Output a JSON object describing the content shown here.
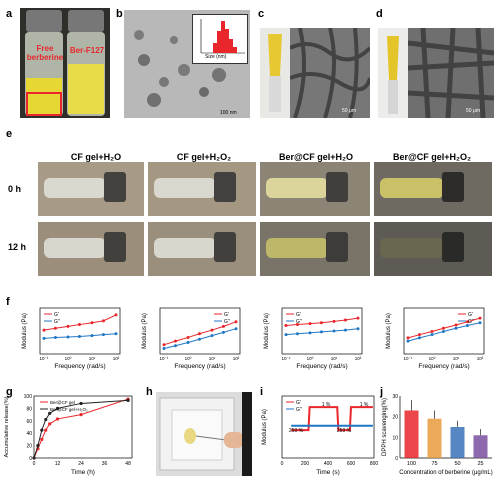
{
  "panel_labels": [
    "a",
    "b",
    "c",
    "d",
    "e",
    "f",
    "g",
    "h",
    "i",
    "j"
  ],
  "panel_a": {
    "vial_left_label_line1": "Free",
    "vial_left_label_line2": "berberine",
    "vial_right_label": "Ber-F127"
  },
  "panel_b": {
    "scale_bar": "100 nm",
    "inset_xlabel": "Size (nm)",
    "inset_ylabel": "Count (%)"
  },
  "panel_c": {
    "scale_bar": "50 μm"
  },
  "panel_d": {
    "scale_bar": "50 μm"
  },
  "panel_e": {
    "columns": [
      "CF gel+H₂O",
      "CF gel+H₂O₂",
      "Ber@CF gel+H₂O",
      "Ber@CF gel+H₂O₂"
    ],
    "rows": [
      "0 h",
      "12 h"
    ]
  },
  "panel_f": {
    "xlabel": "Frequency (rad/s)",
    "ylabel": "Modulus (Pa)",
    "legend": [
      "G'",
      "G''"
    ],
    "colors": {
      "gp": "#e8262b",
      "gpp": "#1f77c4"
    }
  },
  "panel_g": {
    "xlabel": "Time (h)",
    "ylabel": "Accumulative release(%)",
    "legend": [
      "Ber@CF gel",
      "Ber@CF gel+H₂O₂"
    ],
    "xticks": [
      "0",
      "12",
      "24",
      "36",
      "48"
    ],
    "yticks": [
      "0",
      "20",
      "40",
      "60",
      "80",
      "100"
    ]
  },
  "panel_i": {
    "xlabel": "Time (s)",
    "ylabel": "Modulus (Pa)",
    "legend": [
      "G'",
      "G''"
    ],
    "xticks": [
      "0",
      "200",
      "400",
      "600",
      "800"
    ],
    "annotations": [
      "250 %",
      "1 %",
      "250 %",
      "1 %"
    ]
  },
  "panel_j": {
    "xlabel": "Concentration of berberine (μg/mL)",
    "ylabel": "DPPH scavenging(%)",
    "yticks": [
      "0",
      "10",
      "20",
      "30"
    ]
  },
  "chart_data": [
    {
      "type": "line",
      "panel": "f1",
      "xlabel": "Frequency (rad/s)",
      "ylabel": "Modulus (Pa)",
      "x": [
        0.1,
        0.3,
        1,
        3,
        10,
        30,
        100
      ],
      "series": [
        {
          "name": "G'",
          "values": [
            0.52,
            0.56,
            0.6,
            0.64,
            0.68,
            0.72,
            0.85
          ]
        },
        {
          "name": "G''",
          "values": [
            0.34,
            0.36,
            0.37,
            0.38,
            0.4,
            0.42,
            0.44
          ]
        }
      ]
    },
    {
      "type": "line",
      "panel": "f2",
      "xlabel": "Frequency (rad/s)",
      "ylabel": "Modulus (Pa)",
      "x": [
        0.1,
        0.3,
        1,
        3,
        10,
        30,
        100
      ],
      "series": [
        {
          "name": "G'",
          "values": [
            0.2,
            0.28,
            0.36,
            0.44,
            0.52,
            0.6,
            0.7
          ]
        },
        {
          "name": "G''",
          "values": [
            0.12,
            0.18,
            0.25,
            0.32,
            0.4,
            0.47,
            0.55
          ]
        }
      ]
    },
    {
      "type": "line",
      "panel": "f3",
      "xlabel": "Frequency (rad/s)",
      "ylabel": "Modulus (Pa)",
      "x": [
        0.1,
        0.3,
        1,
        3,
        10,
        30,
        100
      ],
      "series": [
        {
          "name": "G'",
          "values": [
            0.62,
            0.64,
            0.66,
            0.68,
            0.71,
            0.74,
            0.78
          ]
        },
        {
          "name": "G''",
          "values": [
            0.42,
            0.44,
            0.46,
            0.48,
            0.5,
            0.52,
            0.55
          ]
        }
      ]
    },
    {
      "type": "line",
      "panel": "f4",
      "xlabel": "Frequency (rad/s)",
      "ylabel": "Modulus (Pa)",
      "x": [
        0.1,
        0.3,
        1,
        3,
        10,
        30,
        100
      ],
      "series": [
        {
          "name": "G'",
          "values": [
            0.35,
            0.42,
            0.49,
            0.56,
            0.63,
            0.7,
            0.78
          ]
        },
        {
          "name": "G''",
          "values": [
            0.28,
            0.35,
            0.42,
            0.49,
            0.56,
            0.62,
            0.68
          ]
        }
      ]
    },
    {
      "type": "line",
      "panel": "g",
      "xlabel": "Time (h)",
      "ylabel": "Accumulative release(%)",
      "xlim": [
        0,
        50
      ],
      "ylim": [
        0,
        100
      ],
      "series": [
        {
          "name": "Ber@CF gel",
          "x": [
            0,
            2,
            4,
            6,
            8,
            12,
            24,
            48
          ],
          "values": [
            0,
            15,
            30,
            45,
            55,
            63,
            70,
            95
          ]
        },
        {
          "name": "Ber@CF gel+H₂O₂",
          "x": [
            0,
            2,
            4,
            6,
            8,
            12,
            24,
            48
          ],
          "values": [
            0,
            20,
            45,
            62,
            72,
            80,
            88,
            93
          ]
        }
      ]
    },
    {
      "type": "line",
      "panel": "i",
      "xlabel": "Time (s)",
      "ylabel": "Modulus (Pa)",
      "xlim": [
        0,
        800
      ],
      "series": [
        {
          "name": "G'",
          "x": [
            80,
            230,
            240,
            480,
            490,
            590,
            600,
            790
          ],
          "values": [
            0.45,
            0.45,
            0.82,
            0.82,
            0.45,
            0.45,
            0.82,
            0.82
          ]
        },
        {
          "name": "G''",
          "x": [
            80,
            230,
            240,
            480,
            490,
            590,
            600,
            790
          ],
          "values": [
            0.52,
            0.52,
            0.52,
            0.52,
            0.52,
            0.52,
            0.52,
            0.52
          ]
        }
      ]
    },
    {
      "type": "bar",
      "panel": "j",
      "xlabel": "Concentration of berberine (μg/mL)",
      "ylabel": "DPPH scavenging(%)",
      "ylim": [
        0,
        30
      ],
      "categories": [
        "100",
        "75",
        "50",
        "25"
      ],
      "values": [
        23,
        19,
        15,
        11
      ],
      "errors": [
        5,
        4,
        3,
        3
      ]
    }
  ]
}
